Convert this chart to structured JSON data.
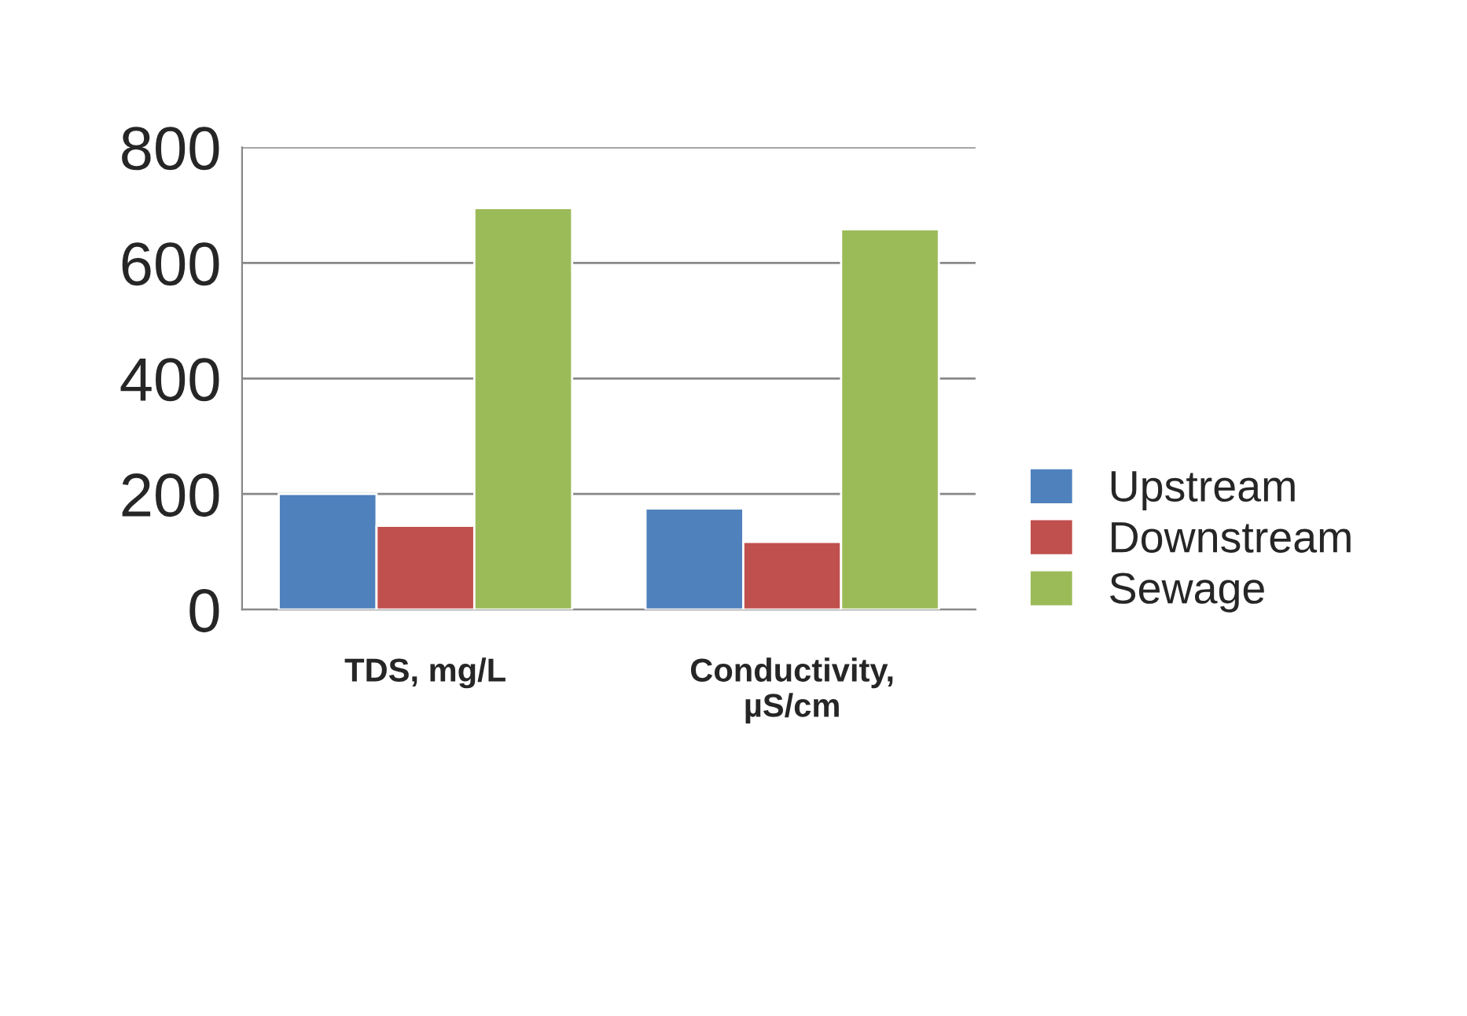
{
  "chart_data": {
    "type": "bar",
    "categories": [
      "TDS, mg/L",
      "Conductivity,\nµS/cm"
    ],
    "series": [
      {
        "name": "Upstream",
        "color": "#4f81bd",
        "values": [
          200,
          175
        ]
      },
      {
        "name": "Downstream",
        "color": "#c0504d",
        "values": [
          145,
          117
        ]
      },
      {
        "name": "Sewage",
        "color": "#9bbb59",
        "values": [
          695,
          658
        ]
      }
    ],
    "ylim": [
      0,
      800
    ],
    "yticks": [
      0,
      200,
      400,
      600,
      800
    ],
    "grid": "y",
    "legend": "right"
  }
}
